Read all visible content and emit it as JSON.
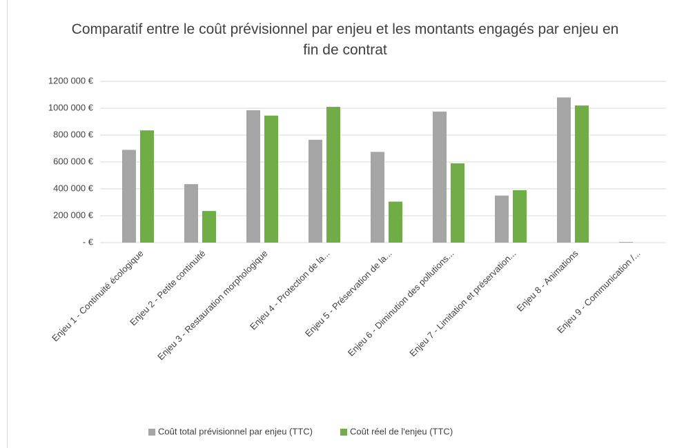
{
  "chart_data": {
    "type": "bar",
    "title": "Comparatif entre le coût prévisionnel par enjeu et les montants engagés par enjeu en fin de contrat",
    "categories": [
      "Enjeu 1 - Continuité écologique",
      "Enjeu 2 - Petite continuité",
      "Enjeu 3 - Restauration morphologique",
      "Enjeu 4 - Protection de la...",
      "Enjeu 5 - Préservation de la...",
      "Enjeu 6 - Diminution des pollutions...",
      "Enjeu 7 - Limitation et préservation...",
      "Enjeu 8 - Animations",
      "Enjeu 9 - Communication /..."
    ],
    "series": [
      {
        "name": "Coût total prévisionnel par enjeu (TTC)",
        "color": "#a5a5a5",
        "values": [
          690000,
          435000,
          985000,
          765000,
          675000,
          975000,
          350000,
          1080000,
          5000
        ]
      },
      {
        "name": "Coût réel de l'enjeu (TTC)",
        "color": "#70ad47",
        "values": [
          835000,
          235000,
          945000,
          1010000,
          305000,
          590000,
          390000,
          1020000,
          0
        ]
      }
    ],
    "ylim": [
      0,
      1200000
    ],
    "yticks": [
      {
        "value": 0,
        "label": "-   €"
      },
      {
        "value": 200000,
        "label": "200 000 €"
      },
      {
        "value": 400000,
        "label": "400 000 €"
      },
      {
        "value": 600000,
        "label": "600 000 €"
      },
      {
        "value": 800000,
        "label": "800 000 €"
      },
      {
        "value": 1000000,
        "label": "1000 000 €"
      },
      {
        "value": 1200000,
        "label": "1200 000 €"
      }
    ],
    "grid": true,
    "legend": "bottom"
  }
}
